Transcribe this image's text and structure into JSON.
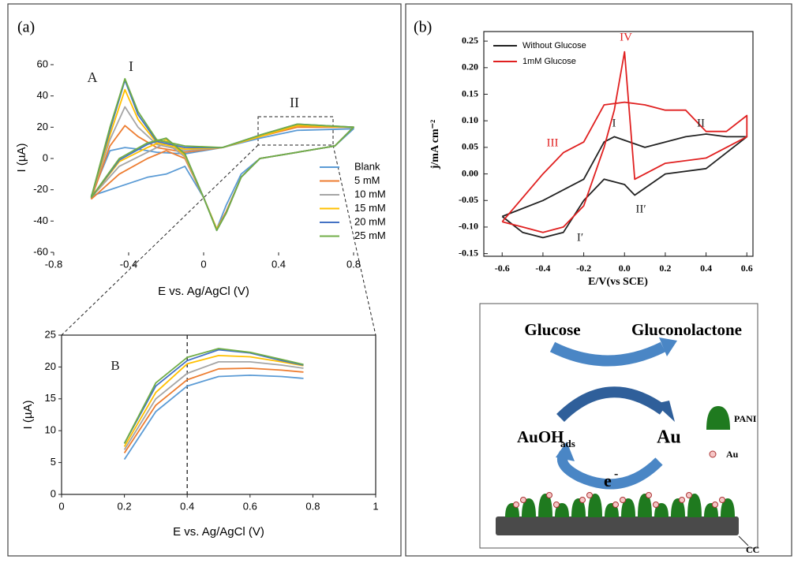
{
  "panels": [
    "(a)",
    "(b)"
  ],
  "chart_data": [
    {
      "type": "line",
      "xlabel": "E vs. Ag/AgCl (V)",
      "ylabel": "I (µA)",
      "annotations": [
        "A",
        "I",
        "II"
      ],
      "legend": true,
      "xlim": [
        -0.8,
        0.8
      ],
      "xticks": [
        -0.8,
        -0.4,
        0,
        0.4,
        0.8
      ],
      "ylim": [
        -60,
        60
      ],
      "yticks": [
        -60,
        -40,
        -20,
        0,
        20,
        40,
        60
      ],
      "x": [
        -0.6,
        -0.5,
        -0.42,
        -0.35,
        -0.25,
        -0.1,
        0.1,
        0.3,
        0.5,
        0.8,
        0.7,
        0.5,
        0.3,
        0.2,
        0.12,
        0.07,
        0.0,
        -0.1,
        -0.2,
        -0.3,
        -0.45,
        -0.6
      ],
      "series": [
        {
          "name": "Blank",
          "color": "#5b9bd5",
          "values": [
            -24,
            5,
            7,
            6,
            4,
            3,
            7,
            13,
            18,
            19,
            8,
            4,
            0,
            -10,
            -30,
            -45,
            -25,
            -5,
            -10,
            -12,
            -18,
            -24
          ]
        },
        {
          "name": "5 mM",
          "color": "#ed7d31",
          "values": [
            -26,
            8,
            21,
            14,
            7,
            4,
            7,
            14,
            20,
            20,
            8,
            4,
            0,
            -12,
            -34,
            -45,
            -25,
            0,
            5,
            0,
            -10,
            -26
          ]
        },
        {
          "name": "10 mM",
          "color": "#a5a5a5",
          "values": [
            -25,
            12,
            33,
            20,
            9,
            5,
            7,
            14,
            21,
            20,
            8,
            4,
            0,
            -12,
            -35,
            -45,
            -25,
            1,
            10,
            4,
            -5,
            -25
          ]
        },
        {
          "name": "15 mM",
          "color": "#ffc000",
          "values": [
            -25,
            15,
            44,
            25,
            10,
            6,
            7,
            14,
            21,
            20,
            8,
            4,
            0,
            -12,
            -35,
            -45,
            -25,
            2,
            12,
            7,
            -2,
            -25
          ]
        },
        {
          "name": "20 mM",
          "color": "#4472c4",
          "values": [
            -25,
            18,
            50,
            28,
            11,
            7,
            7,
            15,
            22,
            20,
            8,
            4,
            0,
            -12,
            -35,
            -46,
            -25,
            3,
            13,
            9,
            -1,
            -25
          ]
        },
        {
          "name": "25 mM",
          "color": "#70ad47",
          "values": [
            -25,
            20,
            51,
            30,
            12,
            8,
            7,
            15,
            22,
            20,
            8,
            4,
            0,
            -12,
            -35,
            -46,
            -25,
            3,
            13,
            10,
            0,
            -25
          ]
        }
      ]
    },
    {
      "type": "line",
      "xlabel": "E vs. Ag/AgCl (V)",
      "ylabel": "I (µA)",
      "annotations": [
        "B"
      ],
      "ref_line_x": 0.4,
      "xlim": [
        0,
        1
      ],
      "xticks": [
        0,
        0.2,
        0.4,
        0.6,
        0.8,
        1
      ],
      "ylim": [
        0,
        25
      ],
      "yticks": [
        0,
        5,
        10,
        15,
        20,
        25
      ],
      "x": [
        0.2,
        0.3,
        0.4,
        0.5,
        0.6,
        0.7,
        0.77
      ],
      "series": [
        {
          "color": "#5b9bd5",
          "values": [
            5.5,
            13,
            17,
            18.5,
            18.7,
            18.5,
            18.2
          ]
        },
        {
          "color": "#ed7d31",
          "values": [
            6.5,
            14,
            18,
            19.7,
            19.8,
            19.5,
            19.2
          ]
        },
        {
          "color": "#a5a5a5",
          "values": [
            7,
            15,
            19,
            20.8,
            20.8,
            20.3,
            19.8
          ]
        },
        {
          "color": "#ffc000",
          "values": [
            7.5,
            16,
            20.5,
            21.8,
            21.6,
            20.8,
            20.2
          ]
        },
        {
          "color": "#4472c4",
          "values": [
            8,
            17,
            21,
            22.7,
            22.2,
            21,
            20.3
          ]
        },
        {
          "color": "#70ad47",
          "values": [
            8,
            17.5,
            21.5,
            22.9,
            22.3,
            21.2,
            20.4
          ]
        }
      ]
    },
    {
      "type": "line",
      "xlabel": "E/V(vs SCE)",
      "ylabel": "j/mA cm⁻²",
      "legend": true,
      "annotations": [
        {
          "text": "IV",
          "color": "#e02020"
        },
        {
          "text": "III",
          "color": "#e02020"
        },
        {
          "text": "I",
          "color": "#222222"
        },
        {
          "text": "II",
          "color": "#222222"
        },
        {
          "text": "II′",
          "color": "#222222"
        },
        {
          "text": "I′",
          "color": "#222222"
        }
      ],
      "xlim": [
        -0.69,
        0.63
      ],
      "xticks": [
        -0.6,
        -0.4,
        -0.2,
        {
          "value": 0,
          "label": "0.0"
        },
        0.2,
        0.4,
        0.6
      ],
      "ylim": [
        -0.155,
        0.268
      ],
      "yticks": [
        -0.15,
        {
          "value": -0.1,
          "label": "-0.10"
        },
        -0.05,
        {
          "value": 0,
          "label": "0.00"
        },
        0.05,
        {
          "value": 0.1,
          "label": "0.10"
        },
        0.15,
        {
          "value": 0.2,
          "label": "0.20"
        },
        0.25
      ],
      "series": [
        {
          "name": "Without Glucose",
          "color": "#222222",
          "x": [
            -0.6,
            -0.4,
            -0.2,
            -0.1,
            -0.05,
            0.1,
            0.3,
            0.4,
            0.5,
            0.6,
            0.6,
            0.4,
            0.2,
            0.05,
            0.0,
            -0.1,
            -0.2,
            -0.3,
            -0.4,
            -0.5,
            -0.6
          ],
          "values": [
            -0.08,
            -0.05,
            -0.01,
            0.06,
            0.07,
            0.05,
            0.07,
            0.075,
            0.07,
            0.07,
            0.07,
            0.01,
            0.0,
            -0.04,
            -0.02,
            -0.01,
            -0.05,
            -0.11,
            -0.12,
            -0.11,
            -0.08
          ]
        },
        {
          "name": "1mM Glucose",
          "color": "#e02020",
          "x": [
            -0.6,
            -0.4,
            -0.3,
            -0.2,
            -0.1,
            0.0,
            0.1,
            0.2,
            0.3,
            0.4,
            0.5,
            0.6,
            0.6,
            0.4,
            0.2,
            0.05,
            0.0,
            -0.05,
            -0.1,
            -0.2,
            -0.3,
            -0.4,
            -0.5,
            -0.6
          ],
          "values": [
            -0.09,
            0.0,
            0.04,
            0.06,
            0.13,
            0.135,
            0.13,
            0.12,
            0.12,
            0.08,
            0.08,
            0.11,
            0.07,
            0.03,
            0.02,
            -0.01,
            0.23,
            0.12,
            0.05,
            -0.06,
            -0.1,
            -0.11,
            -0.1,
            -0.09
          ]
        }
      ]
    }
  ],
  "diagram": {
    "reactant": "Glucose",
    "product": "Gluconolactone",
    "oxidized": "AuOH",
    "oxidized_subscript": "ads",
    "reduced": "Au",
    "electron": "e",
    "electron_charge": "-",
    "legend_polymer": "PANI",
    "legend_particle": "Au",
    "substrate": "CC"
  }
}
